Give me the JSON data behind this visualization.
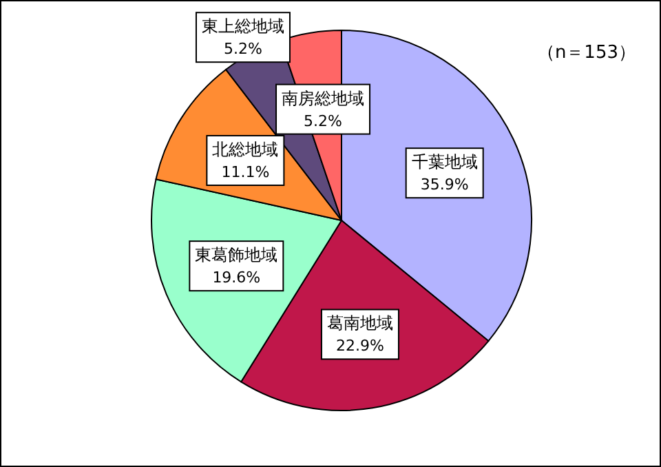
{
  "chart_data": {
    "type": "pie",
    "categories": [
      "千葉地域",
      "葛南地域",
      "東葛飾地域",
      "北総地域",
      "東上総地域",
      "南房総地域"
    ],
    "values": [
      35.9,
      22.9,
      19.6,
      11.1,
      5.2,
      5.2
    ],
    "colors": [
      "#b3b3ff",
      "#c0174a",
      "#99ffcc",
      "#ff8c33",
      "#5e4a7c",
      "#ff6666"
    ],
    "value_labels": [
      "35.9%",
      "22.9%",
      "19.6%",
      "11.1%",
      "5.2%",
      "5.2%"
    ],
    "annotations": [
      "（n＝153）"
    ]
  }
}
